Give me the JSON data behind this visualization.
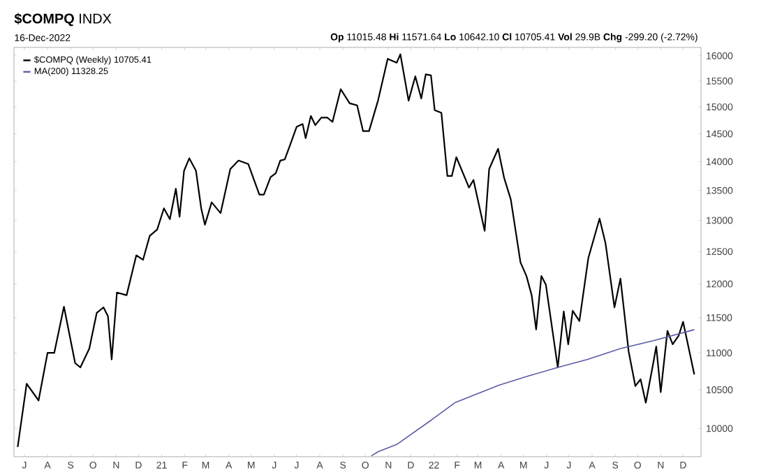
{
  "chart_data": {
    "type": "line",
    "title": "**$COMPQ** INDX",
    "subtitle": "16-Dec-2022",
    "annotations": [
      "**Op** 11015.48 **Hi** 11571.64 **Lo** 10642.10 **Cl** 10705.41 **Vol** 29.9B **Chg** -299.20 (-2.72%)"
    ],
    "log": "y",
    "xlim": [
      "2020-06-17",
      "2022-12-25"
    ],
    "ylim": [
      9650,
      16170
    ],
    "yticks": [
      10000,
      10500,
      11000,
      11500,
      12000,
      12500,
      13000,
      13500,
      14000,
      14500,
      15000,
      15500,
      16000
    ],
    "xticks": [
      {
        "value": "2020-07-01",
        "label": "J"
      },
      {
        "value": "2020-08-01",
        "label": "A"
      },
      {
        "value": "2020-09-01",
        "label": "S"
      },
      {
        "value": "2020-10-01",
        "label": "O"
      },
      {
        "value": "2020-11-01",
        "label": "N"
      },
      {
        "value": "2020-12-01",
        "label": "D"
      },
      {
        "value": "2021-01-01",
        "label": "21"
      },
      {
        "value": "2021-02-01",
        "label": "F"
      },
      {
        "value": "2021-03-01",
        "label": "M"
      },
      {
        "value": "2021-04-01",
        "label": "A"
      },
      {
        "value": "2021-05-01",
        "label": "M"
      },
      {
        "value": "2021-06-01",
        "label": "J"
      },
      {
        "value": "2021-07-01",
        "label": "J"
      },
      {
        "value": "2021-08-01",
        "label": "A"
      },
      {
        "value": "2021-09-01",
        "label": "S"
      },
      {
        "value": "2021-10-01",
        "label": "O"
      },
      {
        "value": "2021-11-01",
        "label": "N"
      },
      {
        "value": "2021-12-01",
        "label": "D"
      },
      {
        "value": "2022-01-01",
        "label": "22"
      },
      {
        "value": "2022-02-01",
        "label": "F"
      },
      {
        "value": "2022-03-01",
        "label": "M"
      },
      {
        "value": "2022-04-01",
        "label": "A"
      },
      {
        "value": "2022-05-01",
        "label": "M"
      },
      {
        "value": "2022-06-01",
        "label": "J"
      },
      {
        "value": "2022-07-01",
        "label": "J"
      },
      {
        "value": "2022-08-01",
        "label": "A"
      },
      {
        "value": "2022-09-01",
        "label": "S"
      },
      {
        "value": "2022-10-01",
        "label": "O"
      },
      {
        "value": "2022-11-01",
        "label": "N"
      },
      {
        "value": "2022-12-01",
        "label": "D"
      }
    ],
    "legend": "top left",
    "series": [
      {
        "name": "$COMPQ (Weekly) 10705.41",
        "color": "#000000",
        "x": [
          "2020-06-22",
          "2020-07-04",
          "2020-07-20",
          "2020-08-01",
          "2020-08-10",
          "2020-08-23",
          "2020-09-07",
          "2020-09-14",
          "2020-09-26",
          "2020-10-06",
          "2020-10-15",
          "2020-10-21",
          "2020-10-26",
          "2020-11-02",
          "2020-11-15",
          "2020-11-28",
          "2020-12-07",
          "2020-12-16",
          "2020-12-26",
          "2021-01-04",
          "2021-01-12",
          "2021-01-20",
          "2021-01-25",
          "2021-01-31",
          "2021-02-07",
          "2021-02-16",
          "2021-02-23",
          "2021-02-28",
          "2021-03-09",
          "2021-03-21",
          "2021-04-03",
          "2021-04-14",
          "2021-04-27",
          "2021-05-12",
          "2021-05-18",
          "2021-05-27",
          "2021-06-03",
          "2021-06-09",
          "2021-06-15",
          "2021-06-22",
          "2021-07-01",
          "2021-07-09",
          "2021-07-13",
          "2021-07-20",
          "2021-07-26",
          "2021-08-03",
          "2021-08-11",
          "2021-08-18",
          "2021-08-29",
          "2021-09-10",
          "2021-09-20",
          "2021-09-28",
          "2021-10-06",
          "2021-10-18",
          "2021-10-31",
          "2021-11-12",
          "2021-11-17",
          "2021-11-28",
          "2021-12-07",
          "2021-12-15",
          "2021-12-21",
          "2021-12-28",
          "2022-01-02",
          "2022-01-11",
          "2022-01-19",
          "2022-01-25",
          "2022-01-31",
          "2022-02-17",
          "2022-02-23",
          "2022-03-10",
          "2022-03-16",
          "2022-03-28",
          "2022-04-05",
          "2022-04-14",
          "2022-04-27",
          "2022-05-05",
          "2022-05-12",
          "2022-05-18",
          "2022-05-25",
          "2022-05-31",
          "2022-06-16",
          "2022-06-24",
          "2022-06-30",
          "2022-07-06",
          "2022-07-15",
          "2022-07-27",
          "2022-08-11",
          "2022-08-19",
          "2022-08-31",
          "2022-09-08",
          "2022-09-19",
          "2022-09-28",
          "2022-10-05",
          "2022-10-12",
          "2022-10-22",
          "2022-10-26",
          "2022-11-01",
          "2022-11-10",
          "2022-11-17",
          "2022-11-25",
          "2022-12-01",
          "2022-12-16"
        ],
        "values": [
          9770,
          10580,
          10360,
          11000,
          11000,
          11660,
          10860,
          10800,
          11060,
          11570,
          11650,
          11520,
          10910,
          11870,
          11830,
          12440,
          12370,
          12750,
          12850,
          13200,
          13020,
          13530,
          13060,
          13840,
          14060,
          13840,
          13200,
          12930,
          13300,
          13120,
          13870,
          14020,
          13960,
          13430,
          13430,
          13730,
          13800,
          14020,
          14040,
          14290,
          14630,
          14680,
          14420,
          14830,
          14660,
          14800,
          14800,
          14720,
          15340,
          15070,
          15030,
          14550,
          14550,
          15120,
          15940,
          15860,
          16030,
          15120,
          15590,
          15160,
          15630,
          15610,
          14940,
          14890,
          13750,
          13750,
          14080,
          13550,
          13680,
          12830,
          13870,
          14230,
          13720,
          13350,
          12330,
          12120,
          11830,
          11330,
          12120,
          11990,
          10800,
          11590,
          11120,
          11600,
          11450,
          12400,
          13030,
          12630,
          11650,
          12080,
          11020,
          10550,
          10640,
          10330,
          10860,
          11090,
          10470,
          11310,
          11120,
          11240,
          11440,
          10705
        ]
      },
      {
        "name": "MA(200) 11328.25",
        "color": "#5b5ba8",
        "x": [
          "2021-10-09",
          "2021-10-18",
          "2021-11-12",
          "2021-12-29",
          "2022-01-29",
          "2022-03-29",
          "2022-05-06",
          "2022-06-16",
          "2022-07-26",
          "2022-09-08",
          "2022-10-22",
          "2022-12-16"
        ],
        "values": [
          9660,
          9710,
          9800,
          10110,
          10330,
          10560,
          10680,
          10800,
          10910,
          11060,
          11170,
          11328
        ]
      }
    ]
  }
}
